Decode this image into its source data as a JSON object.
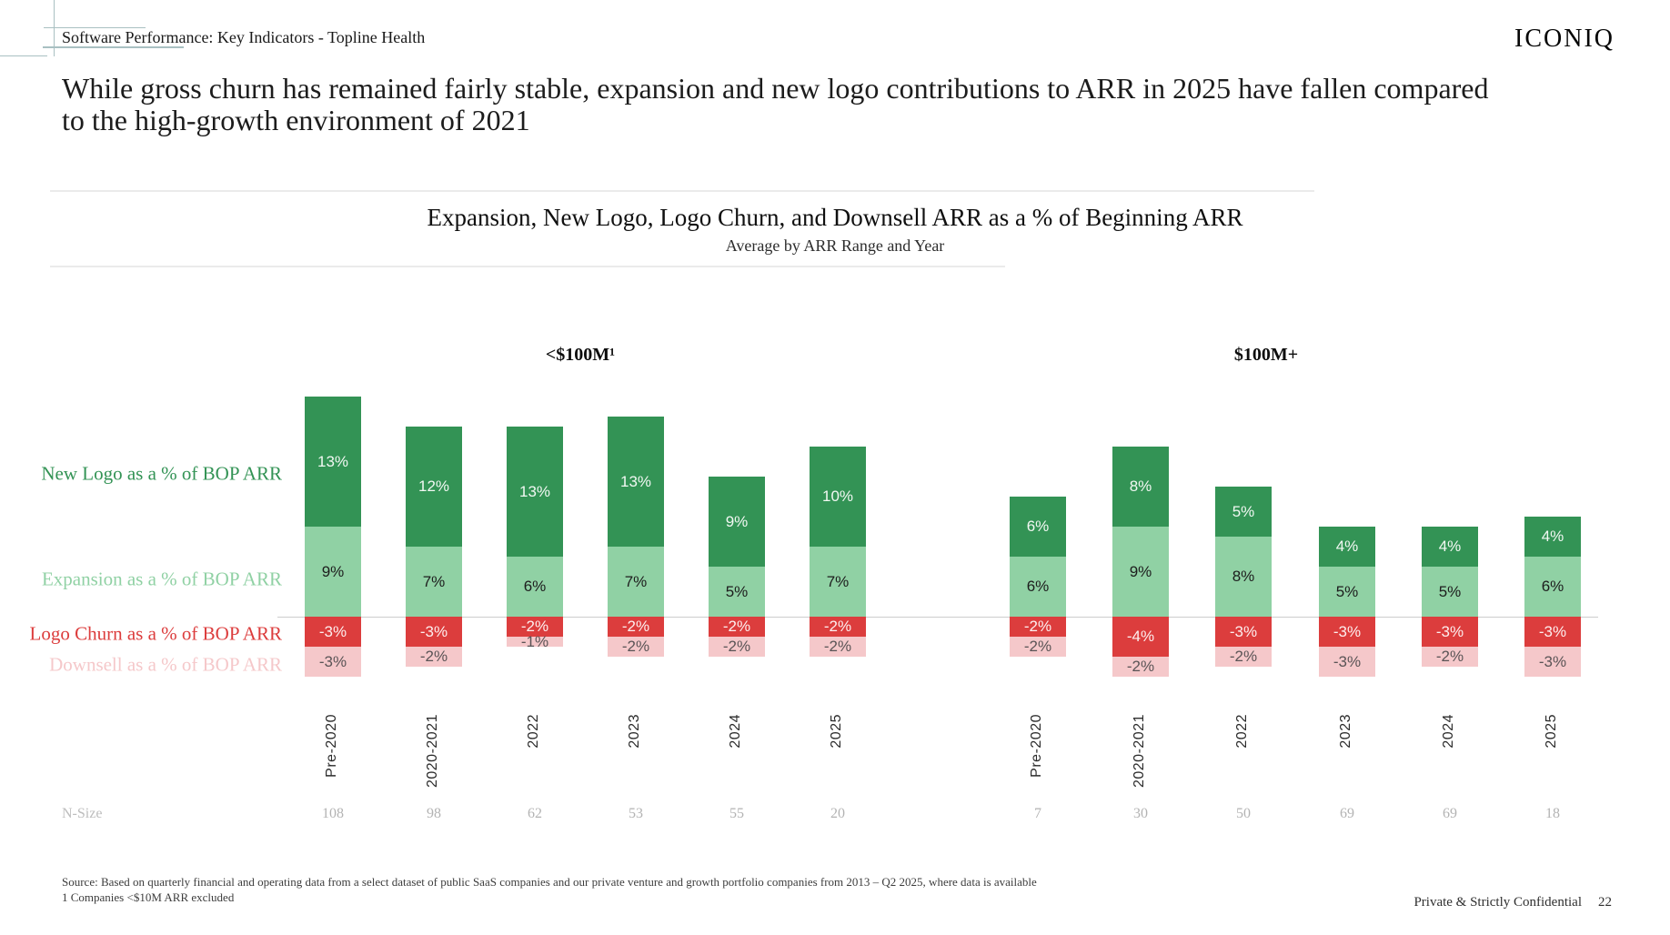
{
  "slide": {
    "breadcrumb": "Software Performance: Key Indicators - Topline Health",
    "logo": "ICONIQ",
    "headline": "While gross churn has remained fairly stable, expansion and new logo contributions to ARR in 2025 have fallen compared to the high-growth environment of 2021",
    "footnote_source": "Source: Based on quarterly financial and operating data from a select dataset of public SaaS companies and our private venture and growth portfolio companies from 2013 – Q2 2025, where data is available",
    "footnote_note": "1 Companies <$10M ARR excluded",
    "confidential": "Private & Strictly Confidential",
    "page_number": "22"
  },
  "chart_data": {
    "type": "bar",
    "variant": "stacked",
    "title": "Expansion, New Logo, Logo Churn, and Downsell ARR as a % of Beginning ARR",
    "subtitle": "Average by ARR Range and Year",
    "value_suffix": "%",
    "legend_position": "left",
    "grid": "off",
    "series_meta": [
      {
        "key": "new_logo",
        "label": "New Logo as a % of BOP ARR",
        "color": "#339355"
      },
      {
        "key": "expansion",
        "label": "Expansion as a % of BOP ARR",
        "color": "#90d1a4"
      },
      {
        "key": "logo_churn",
        "label": "Logo Churn as a % of BOP ARR",
        "color": "#dc3d3d"
      },
      {
        "key": "downsell",
        "label": "Downsell as a % of BOP ARR",
        "color": "#f5c8ca"
      }
    ],
    "categories": [
      "Pre-2020",
      "2020-2021",
      "2022",
      "2023",
      "2024",
      "2025"
    ],
    "groups": [
      {
        "label": "<$100M¹",
        "values": {
          "new_logo": [
            13,
            12,
            13,
            13,
            9,
            10
          ],
          "expansion": [
            9,
            7,
            6,
            7,
            5,
            7
          ],
          "logo_churn": [
            -3,
            -3,
            -2,
            -2,
            -2,
            -2
          ],
          "downsell": [
            -3,
            -2,
            -1,
            -2,
            -2,
            -2
          ]
        },
        "n_size": [
          108,
          98,
          62,
          53,
          55,
          20
        ]
      },
      {
        "label": "$100M+",
        "values": {
          "new_logo": [
            6,
            8,
            5,
            4,
            4,
            4
          ],
          "expansion": [
            6,
            9,
            8,
            5,
            5,
            6
          ],
          "logo_churn": [
            -2,
            -4,
            -3,
            -3,
            -3,
            -3
          ],
          "downsell": [
            -2,
            -2,
            -2,
            -3,
            -2,
            -3
          ]
        },
        "n_size": [
          7,
          30,
          50,
          69,
          69,
          18
        ]
      }
    ],
    "n_size_label": "N-Size",
    "colors": {
      "zero_line": "#cdcdcd",
      "accent_teal": "#a9c0c2"
    }
  }
}
